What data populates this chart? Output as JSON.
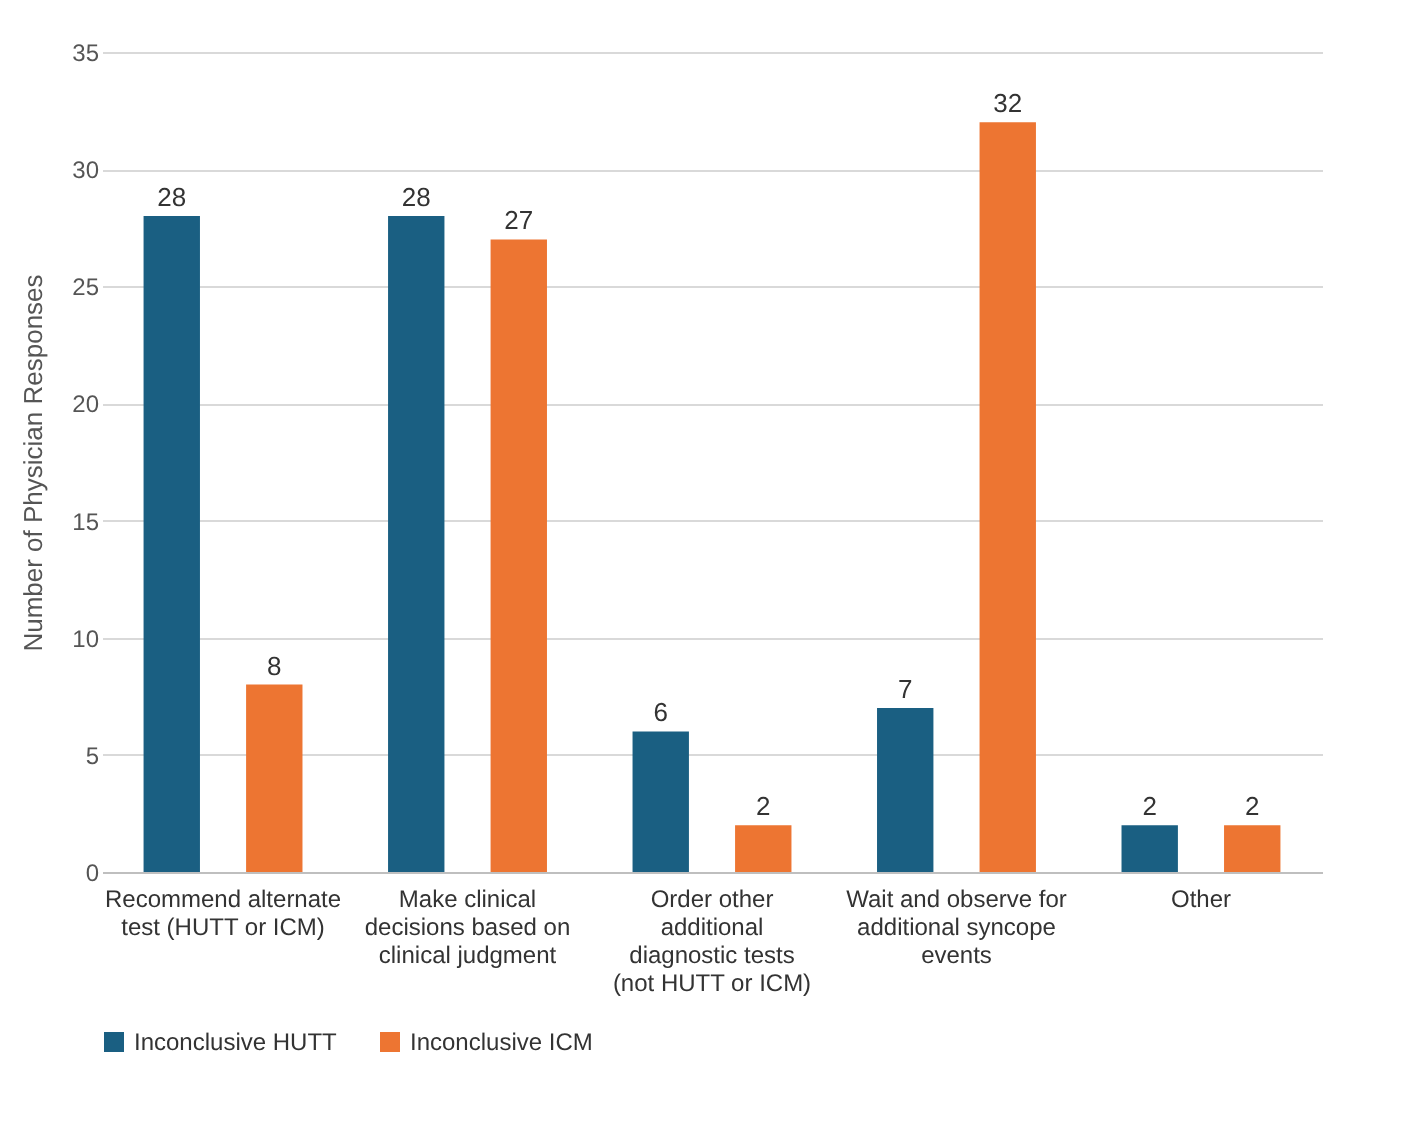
{
  "chart_data": {
    "type": "bar",
    "ylabel": "Number of Physician Responses",
    "categories": [
      "Recommend alternate test (HUTT or ICM)",
      "Make clinical decisions based on clinical judgment",
      "Order other additional diagnostic tests (not HUTT or ICM)",
      "Wait and observe for additional syncope events",
      "Other"
    ],
    "series": [
      {
        "name": "Inconclusive HUTT",
        "color": "#1a5f82",
        "values": [
          28,
          28,
          6,
          7,
          2
        ]
      },
      {
        "name": "Inconclusive ICM",
        "color": "#ed7532",
        "values": [
          8,
          27,
          2,
          32,
          2
        ]
      }
    ],
    "ylim": [
      0,
      35
    ],
    "yticks": [
      0,
      5,
      10,
      15,
      20,
      25,
      30,
      35
    ],
    "grid": "y",
    "legend": "bottom",
    "data_labels": true
  }
}
